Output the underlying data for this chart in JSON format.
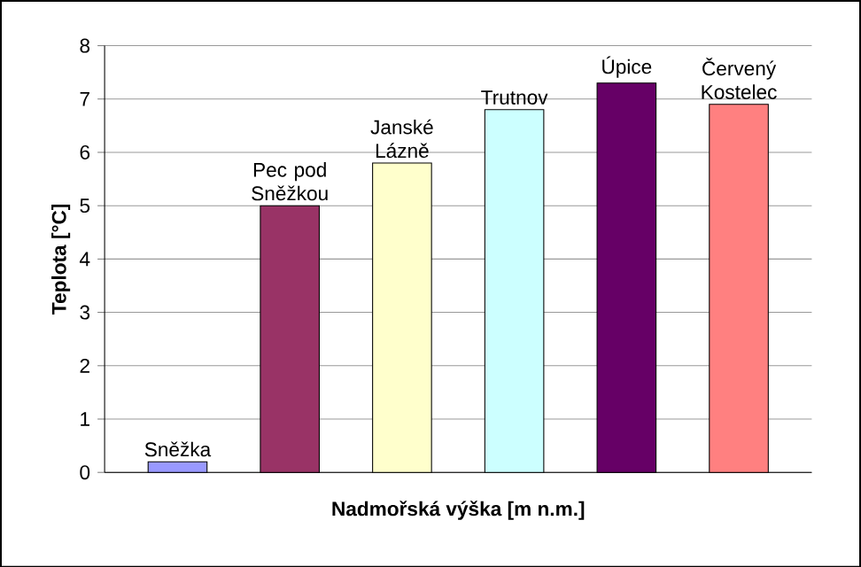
{
  "chart_data": {
    "type": "bar",
    "xlabel": "Nadmořská výška [m n.m.]",
    "ylabel": "Teplota [°C]",
    "categories": [
      "Sněžka",
      "Pec pod Sněžkou",
      "Janské Lázně",
      "Trutnov",
      "Úpice",
      "Červený Kostelec"
    ],
    "values": [
      0.2,
      5.0,
      5.8,
      6.8,
      7.3,
      6.9
    ],
    "colors": [
      "#9999ff",
      "#993366",
      "#ffffcc",
      "#ccffff",
      "#660066",
      "#ff8080"
    ],
    "ylim": [
      0,
      8
    ],
    "yticks": [
      0,
      1,
      2,
      3,
      4,
      5,
      6,
      7,
      8
    ],
    "grid": "y"
  }
}
